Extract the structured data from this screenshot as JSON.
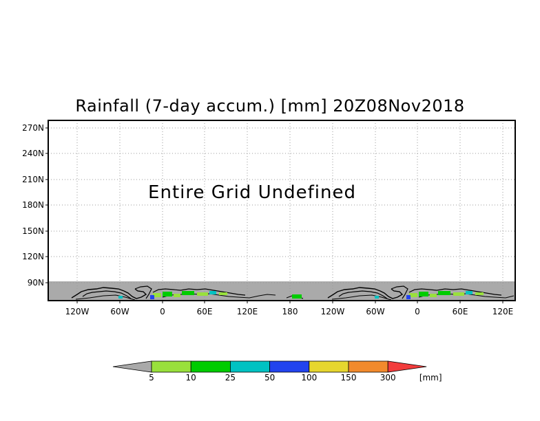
{
  "title": "Rainfall (7-day accum.) [mm] 20Z08Nov2018",
  "message": "Entire Grid Undefined",
  "y_axis_labels": [
    "270N",
    "240N",
    "210N",
    "180N",
    "150N",
    "120N",
    "90N"
  ],
  "x_axis_labels": [
    "120W",
    "60W",
    "0",
    "60E",
    "120E",
    "180",
    "120W",
    "60W",
    "0",
    "60E",
    "120E"
  ],
  "colorbar": {
    "unit": "[mm]",
    "ticks": [
      "5",
      "10",
      "25",
      "50",
      "100",
      "150",
      "300"
    ],
    "colors": [
      "#a9a9a9",
      "#99e03c",
      "#00cc00",
      "#00c2c2",
      "#2244ee",
      "#e6d62e",
      "#f28a2c",
      "#f23c3c"
    ]
  },
  "colors": {
    "land": "#000000",
    "undefined_fill": "#aaaaaa",
    "grid": "#999999"
  }
}
